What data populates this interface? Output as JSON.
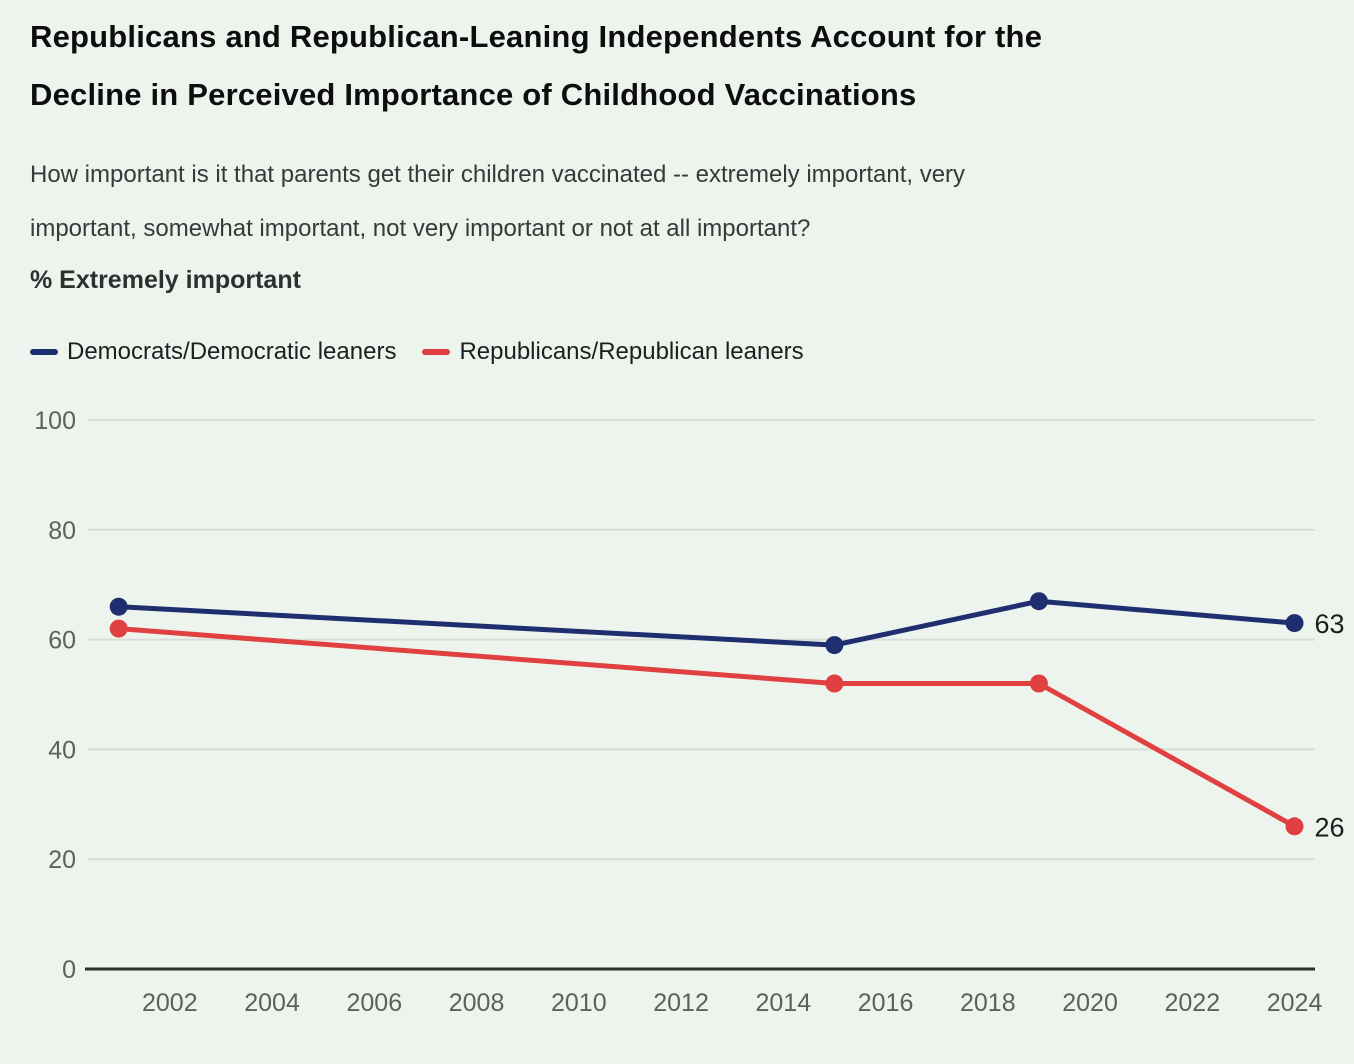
{
  "page": {
    "background_color": "#edf3ed"
  },
  "header": {
    "title_line1": "Republicans and Republican-Leaning Independents Account for the",
    "title_line2": "Decline in Perceived Importance of Childhood Vaccinations",
    "subtitle_line1": "How important is it that parents get their children vaccinated -- extremely important, very",
    "subtitle_line2": "important, somewhat important, not very important or not at all important?",
    "measure_label": "% Extremely important"
  },
  "chart_data": {
    "type": "line",
    "title": "Republicans and Republican-Leaning Independents Account for the Decline in Perceived Importance of Childhood Vaccinations",
    "question": "How important is it that parents get their children vaccinated -- extremely important, very important, somewhat important, not very important or not at all important?",
    "ylabel": "% Extremely important",
    "x": [
      2001,
      2015,
      2019,
      2024
    ],
    "series": [
      {
        "name": "Democrats/Democratic leaners",
        "color": "#1e2e6e",
        "values": [
          66,
          59,
          67,
          63
        ],
        "end_label": "63"
      },
      {
        "name": "Republicans/Republican leaners",
        "color": "#e04040",
        "values": [
          62,
          52,
          52,
          26
        ],
        "end_label": "26"
      }
    ],
    "xlim": [
      2000.4,
      2024.4
    ],
    "ylim": [
      0,
      100
    ],
    "x_ticks": [
      2002,
      2004,
      2006,
      2008,
      2010,
      2012,
      2014,
      2016,
      2018,
      2020,
      2022,
      2024
    ],
    "y_ticks": [
      0,
      20,
      40,
      60,
      80,
      100
    ],
    "grid": "horizontal",
    "legend_position": "top-left",
    "colors": {
      "grid": "#d7ded8",
      "axis": "#2e2e2e",
      "tick_text": "#5d615e",
      "value_label": "#1d1d1d"
    }
  }
}
